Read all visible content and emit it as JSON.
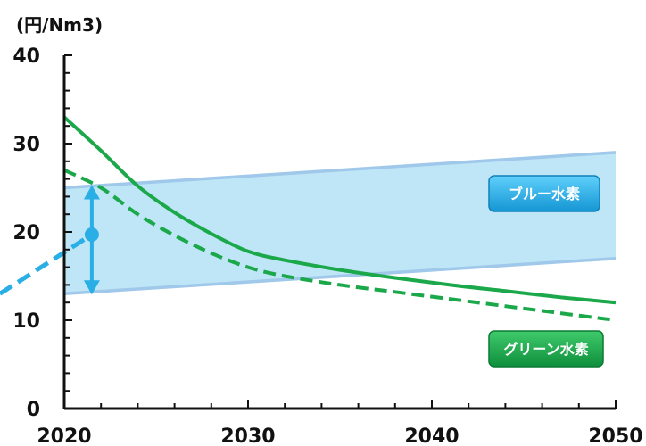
{
  "chart_data": {
    "type": "line",
    "unit_label": "(円/Nm3)",
    "x_ticks": [
      "2020",
      "2030",
      "2040",
      "2050"
    ],
    "y_ticks": [
      "0",
      "10",
      "20",
      "30",
      "40"
    ],
    "xlim": [
      2020,
      2050
    ],
    "ylim": [
      0,
      40
    ],
    "grid": false,
    "band": {
      "name": "ブルー水素",
      "color": "#bfe6f6",
      "edge_color": "#9fc8ea",
      "lower": {
        "x": [
          2020,
          2050
        ],
        "y": [
          13,
          17
        ]
      },
      "upper": {
        "x": [
          2020,
          2050
        ],
        "y": [
          25,
          29
        ]
      }
    },
    "series": [
      {
        "name": "グリーン水素",
        "style": "solid",
        "color": "#1aa84a",
        "x": [
          2020,
          2022,
          2024,
          2026,
          2028,
          2030,
          2032,
          2035,
          2038,
          2041,
          2044,
          2047,
          2050
        ],
        "y": [
          33,
          29.2,
          25.2,
          22.2,
          19.8,
          17.8,
          16.8,
          15.7,
          14.8,
          14.0,
          13.3,
          12.6,
          12.0
        ]
      },
      {
        "style": "dashed",
        "color": "#1aa84a",
        "x": [
          2020,
          2022,
          2024,
          2026,
          2028,
          2030,
          2032,
          2035,
          2038,
          2041,
          2044,
          2047,
          2050
        ],
        "y": [
          27,
          25.0,
          22.0,
          19.6,
          17.6,
          16.0,
          15.0,
          14.0,
          13.2,
          12.4,
          11.6,
          10.8,
          10.0
        ]
      }
    ],
    "annotations": {
      "blue_marker": {
        "x": 2021.5,
        "y": 19.7,
        "color": "#29aee6"
      },
      "blue_trend_line": {
        "x": [
          2016.5,
          2021.5
        ],
        "y": [
          13,
          19.7
        ],
        "color": "#29aee6"
      },
      "range_arrow": {
        "x": 2021.5,
        "y_top": 25.3,
        "y_bottom": 12.9,
        "color": "#29aee6"
      }
    },
    "legend": [
      {
        "label": "ブルー水素",
        "color": "#29a6e4",
        "placement": "right, inside band"
      },
      {
        "label": "グリーン水素",
        "color": "#16a04a",
        "placement": "bottom-right"
      }
    ]
  }
}
